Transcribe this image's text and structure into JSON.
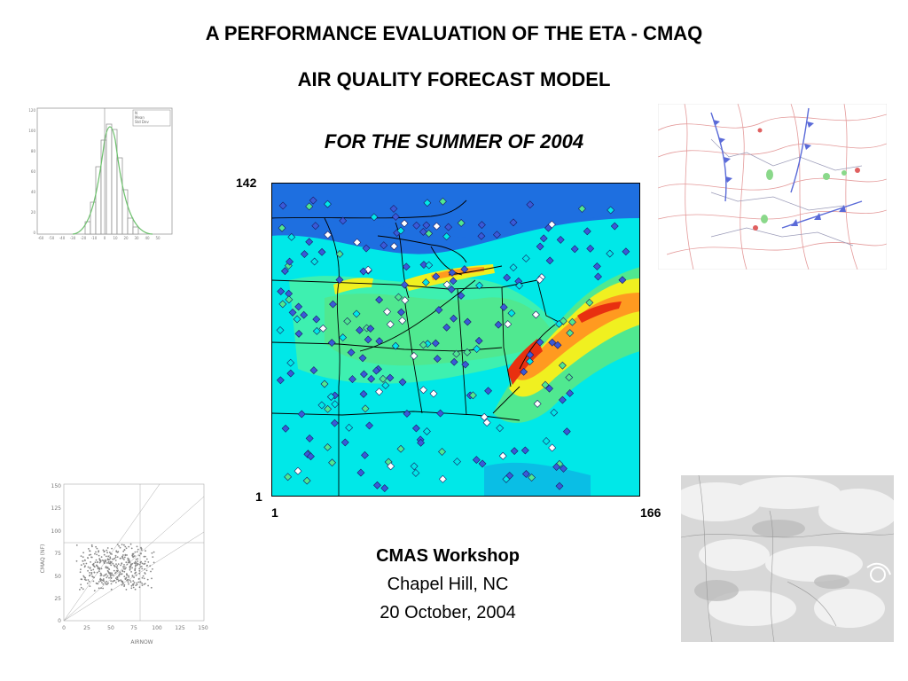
{
  "slide": {
    "title_line1": "A PERFORMANCE EVALUATION OF THE ETA - CMAQ",
    "title_line2": "AIR  QUALITY  FORECAST  MODEL",
    "subtitle": "FOR THE SUMMER OF 2004"
  },
  "map": {
    "y_top_label": "142",
    "y_bottom_label": "1",
    "x_left_label": "1",
    "x_right_label": "166",
    "colors": {
      "deep_blue": "#1e6fe0",
      "cyan": "#00e8e8",
      "light_green": "#50e890",
      "yellow": "#f0f020",
      "orange": "#ff9a20",
      "red": "#e83010",
      "marker": "#3a5ad8"
    }
  },
  "histogram": {
    "legend": [
      "N",
      "Mean",
      "Std Dev"
    ],
    "y_ticks": [
      "120",
      "100",
      "80",
      "60",
      "40",
      "20",
      "0"
    ],
    "x_ticks": [
      "-60",
      "-50",
      "-40",
      "-30",
      "-20",
      "-10",
      "0",
      "10",
      "20",
      "30",
      "40",
      "50"
    ]
  },
  "scatter": {
    "ylabel": "CMAQ (NF)",
    "xlabel": "AIRNOW",
    "y_ticks": [
      "150",
      "125",
      "100",
      "75",
      "50",
      "25",
      "0"
    ],
    "x_ticks": [
      "0",
      "25",
      "50",
      "75",
      "100",
      "125",
      "150"
    ]
  },
  "workshop": {
    "name": "CMAS Workshop",
    "location": "Chapel Hill, NC",
    "date": "20 October, 2004"
  }
}
